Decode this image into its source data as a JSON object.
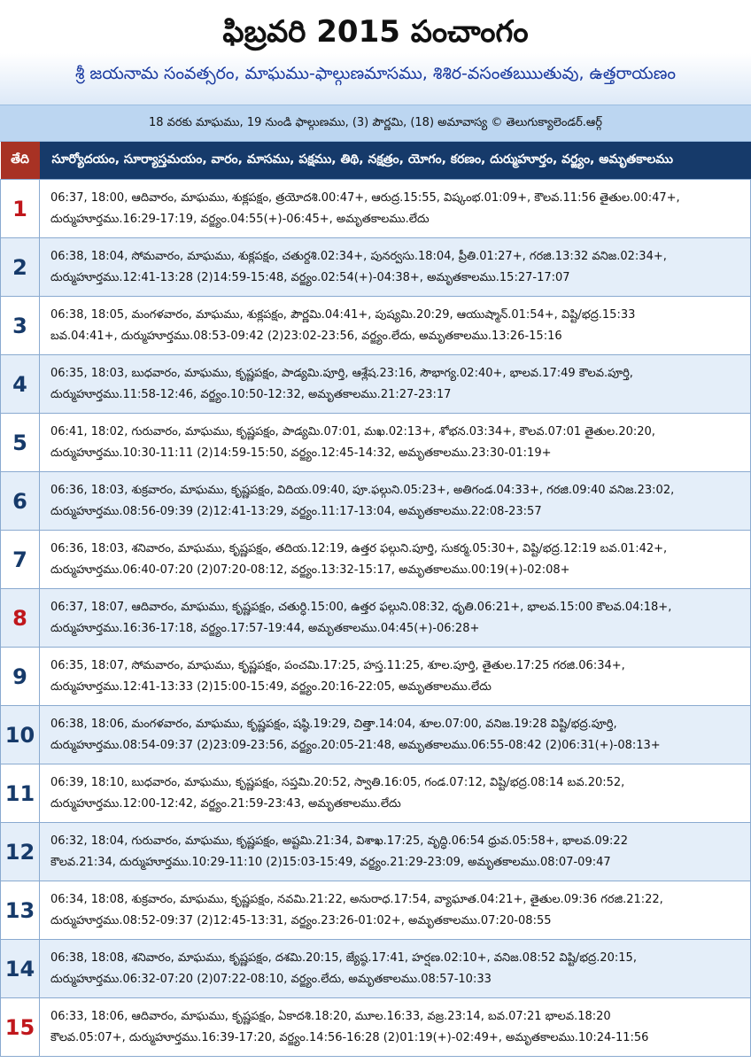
{
  "header": {
    "title": "ఫిబ్రవరి 2015 పంచాంగం",
    "subtitle": "శ్రీ జయనామ సంవత్సరం, మాఘము-ఫాల్గుణమాసము, శిశిర-వసంతఋుతువు, ఉత్తరాయణం",
    "info": "18 వరకు మాఘము, 19 నుండి ఫాల్గుణము, (3) పౌర్ణమి, (18) అమావాస్య © తెలుగుక్యాలెండర్.ఆర్గ్"
  },
  "table": {
    "columns": [
      "తేది",
      "సూర్యోదయం, సూర్యాస్తమయం, వారం, మాసము, పక్షము, తిథి, నక్షత్రం, యోగం, కరణం, దుర్ముహూర్తం, వర్జ్యం, అమృతకాలము"
    ],
    "rows": [
      {
        "day": 1,
        "color": "#c0171c",
        "lines": [
          "06:37, 18:00, ఆదివారం, మాఘము, శుక్లపక్షం, త్రయోదశి.00:47+, ఆరుద్ర.15:55, విష్కంభ.01:09+, కౌలవ.11:56 తైతుల.00:47+,",
          "దుర్ముహూర్తము.16:29-17:19, వర్జ్యం.04:55(+)-06:45+, అమృతకాలము.లేదు"
        ]
      },
      {
        "day": 2,
        "color": "#163a6a",
        "lines": [
          "06:38, 18:04, సోమవారం, మాఘము, శుక్లపక్షం, చతుర్దశి.02:34+, పునర్వసు.18:04, ప్రీతి.01:27+, గరజి.13:32 వనిజ.02:34+,",
          "దుర్ముహూర్తము.12:41-13:28 (2)14:59-15:48, వర్జ్యం.02:54(+)-04:38+, అమృతకాలము.15:27-17:07"
        ]
      },
      {
        "day": 3,
        "color": "#163a6a",
        "lines": [
          "06:38, 18:05, మంగళవారం, మాఘము, శుక్లపక్షం, పౌర్ణమి.04:41+, పుష్యమి.20:29, ఆయుష్మాన్.01:54+, విష్టి/భద్ర.15:33",
          "బవ.04:41+, దుర్ముహూర్తము.08:53-09:42 (2)23:02-23:56, వర్జ్యం.లేదు, అమృతకాలము.13:26-15:16"
        ]
      },
      {
        "day": 4,
        "color": "#163a6a",
        "lines": [
          "06:35, 18:03, బుధవారం, మాఘము, కృష్ణపక్షం, పాడ్యమి.పూర్తి, ఆశ్లేష.23:16, సౌభాగ్య.02:40+, భాలవ.17:49 కౌలవ.పూర్తి,",
          "దుర్ముహూర్తము.11:58-12:46, వర్జ్యం.10:50-12:32, అమృతకాలము.21:27-23:17"
        ]
      },
      {
        "day": 5,
        "color": "#163a6a",
        "lines": [
          "06:41, 18:02, గురువారం, మాఘము, కృష్ణపక్షం, పాడ్యమి.07:01, మఖ.02:13+, శోభన.03:34+, కౌలవ.07:01 తైతుల.20:20,",
          "దుర్ముహూర్తము.10:30-11:11 (2)14:59-15:50, వర్జ్యం.12:45-14:32, అమృతకాలము.23:30-01:19+"
        ]
      },
      {
        "day": 6,
        "color": "#163a6a",
        "lines": [
          "06:36, 18:03, శుక్రవారం, మాఘము, కృష్ణపక్షం, విదియ.09:40, పూ.ఫల్గుని.05:23+, అతిగండ.04:33+, గరజి.09:40 వనిజ.23:02,",
          "దుర్ముహూర్తము.08:56-09:39 (2)12:41-13:29, వర్జ్యం.11:17-13:04, అమృతకాలము.22:08-23:57"
        ]
      },
      {
        "day": 7,
        "color": "#163a6a",
        "lines": [
          "06:36, 18:03, శనివారం, మాఘము, కృష్ణపక్షం, తదియ.12:19, ఉత్తర ఫల్గుని.పూర్తి, సుకర్మ.05:30+, విష్టి/భద్ర.12:19 బవ.01:42+,",
          "దుర్ముహూర్తము.06:40-07:20 (2)07:20-08:12, వర్జ్యం.13:32-15:17, అమృతకాలము.00:19(+)-02:08+"
        ]
      },
      {
        "day": 8,
        "color": "#c0171c",
        "lines": [
          "06:37, 18:07, ఆదివారం, మాఘము, కృష్ణపక్షం, చతుర్ధి.15:00, ఉత్తర ఫల్గుని.08:32, ధృతి.06:21+, భాలవ.15:00 కౌలవ.04:18+,",
          "దుర్ముహూర్తము.16:36-17:18, వర్జ్యం.17:57-19:44, అమృతకాలము.04:45(+)-06:28+"
        ]
      },
      {
        "day": 9,
        "color": "#163a6a",
        "lines": [
          "06:35, 18:07, సోమవారం, మాఘము, కృష్ణపక్షం, పంచమి.17:25, హస్త.11:25, శూల.పూర్తి, తైతుల.17:25 గరజి.06:34+,",
          "దుర్ముహూర్తము.12:41-13:33 (2)15:00-15:49, వర్జ్యం.20:16-22:05, అమృతకాలము.లేదు"
        ]
      },
      {
        "day": 10,
        "color": "#163a6a",
        "lines": [
          "06:38, 18:06, మంగళవారం, మాఘము, కృష్ణపక్షం, షష్ఠి.19:29, చిత్తా.14:04, శూల.07:00, వనిజ.19:28 విష్టి/భద్ర.పూర్తి,",
          "దుర్ముహూర్తము.08:54-09:37 (2)23:09-23:56, వర్జ్యం.20:05-21:48, అమృతకాలము.06:55-08:42 (2)06:31(+)-08:13+"
        ]
      },
      {
        "day": 11,
        "color": "#163a6a",
        "lines": [
          "06:39, 18:10, బుధవారం, మాఘము, కృష్ణపక్షం, సప్తమి.20:52, స్వాతి.16:05, గండ.07:12, విష్టి/భద్ర.08:14 బవ.20:52,",
          "దుర్ముహూర్తము.12:00-12:42, వర్జ్యం.21:59-23:43, అమృతకాలము.లేదు"
        ]
      },
      {
        "day": 12,
        "color": "#163a6a",
        "lines": [
          "06:32, 18:04, గురువారం, మాఘము, కృష్ణపక్షం, అష్టమి.21:34, విశాఖ.17:25, వృద్ధి.06:54 ధ్రువ.05:58+, భాలవ.09:22",
          "కౌలవ.21:34, దుర్ముహూర్తము.10:29-11:10 (2)15:03-15:49, వర్జ్యం.21:29-23:09, అమృతకాలము.08:07-09:47"
        ]
      },
      {
        "day": 13,
        "color": "#163a6a",
        "lines": [
          "06:34, 18:08, శుక్రవారం, మాఘము, కృష్ణపక్షం, నవమి.21:22, అనురాధ.17:54, వ్యాఘాత.04:21+, తైతుల.09:36 గరజి.21:22,",
          "దుర్ముహూర్తము.08:52-09:37 (2)12:45-13:31, వర్జ్యం.23:26-01:02+, అమృతకాలము.07:20-08:55"
        ]
      },
      {
        "day": 14,
        "color": "#163a6a",
        "lines": [
          "06:38, 18:08, శనివారం, మాఘము, కృష్ణపక్షం, దశమి.20:15, జ్యేష్ఠ.17:41, హర్షణ.02:10+, వనిజ.08:52 విష్టి/భద్ర.20:15,",
          "దుర్ముహూర్తము.06:32-07:20 (2)07:22-08:10, వర్జ్యం.లేదు, అమృతకాలము.08:57-10:33"
        ]
      },
      {
        "day": 15,
        "color": "#c0171c",
        "lines": [
          "06:33, 18:06, ఆదివారం, మాఘము, కృష్ణపక్షం, ఏకాదశి.18:20, మూల.16:33, వజ్ర.23:14, బవ.07:21 భాలవ.18:20",
          "కౌలవ.05:07+, దుర్ముహూర్తము.16:39-17:20, వర్జ్యం.14:56-16:28 (2)01:19(+)-02:49+, అమృతకాలము.10:24-11:56"
        ]
      }
    ]
  }
}
